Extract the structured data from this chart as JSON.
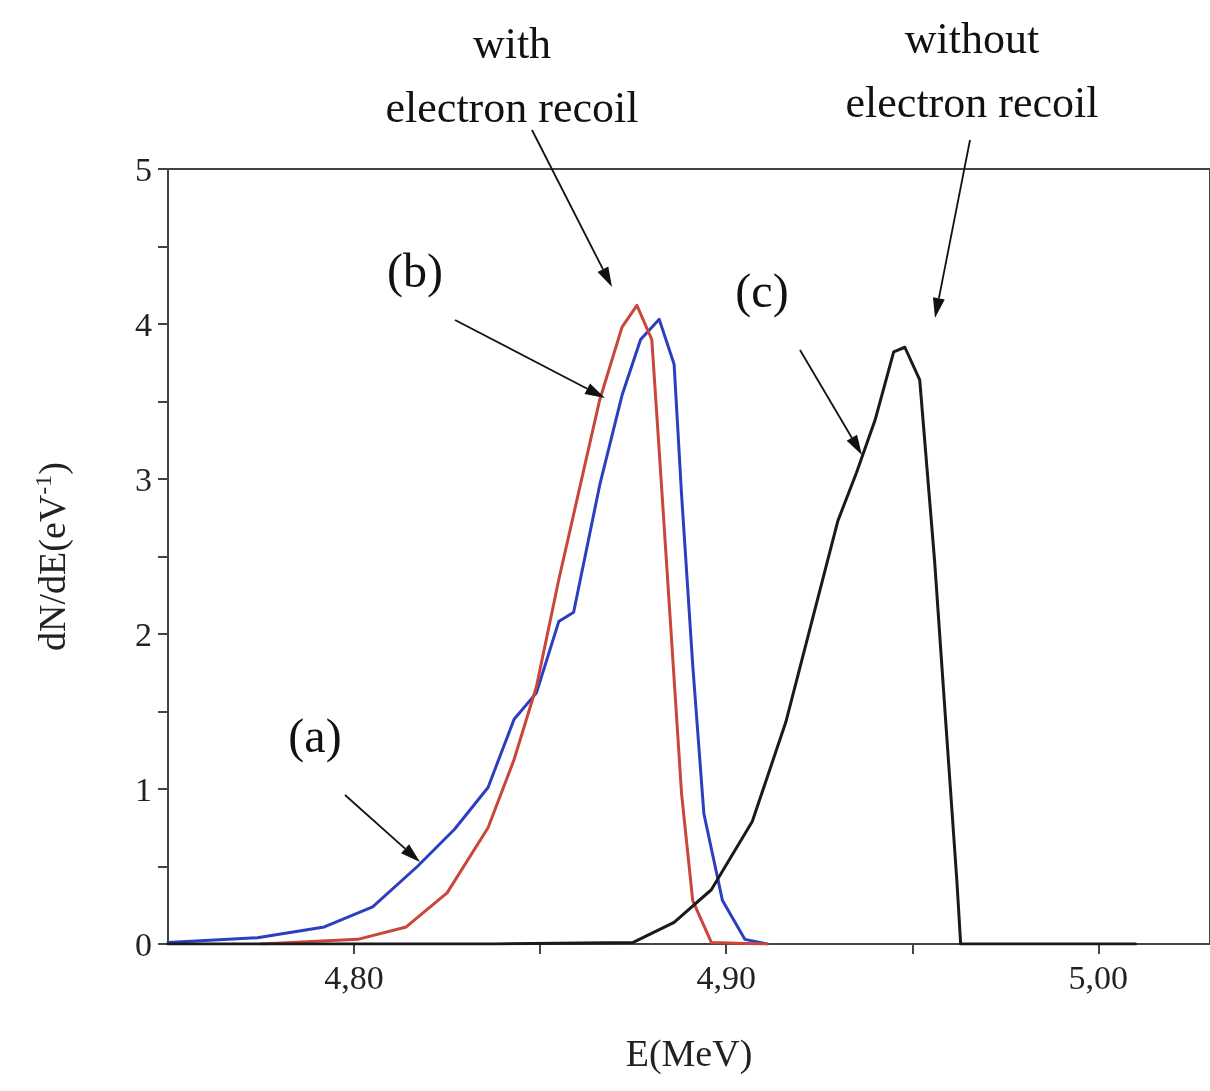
{
  "chart_data": {
    "type": "line",
    "xlabel": "E(MeV)",
    "ylabel": "dN/dE(eV$^{-1}$)",
    "xlim": [
      4.75,
      5.03
    ],
    "ylim": [
      0,
      5
    ],
    "xticks": [
      {
        "value": 4.8,
        "label": "4,80"
      },
      {
        "value": 4.85,
        "label": null
      },
      {
        "value": 4.9,
        "label": "4,90"
      },
      {
        "value": 4.95,
        "label": null
      },
      {
        "value": 5.0,
        "label": "5,00"
      }
    ],
    "yticks": [
      0,
      {
        "value": 0.5,
        "label": null
      },
      1,
      {
        "value": 1.5,
        "label": null
      },
      2,
      {
        "value": 2.5,
        "label": null
      },
      3,
      {
        "value": 3.5,
        "label": null
      },
      4,
      {
        "value": 4.5,
        "label": null
      },
      5
    ],
    "grid": false,
    "marker": "none",
    "line_style": "solid",
    "series": [
      {
        "color": "#2b3fbf",
        "x": [
          4.75,
          4.774,
          4.792,
          4.805,
          4.817,
          4.827,
          4.836,
          4.843,
          4.849,
          4.855,
          4.859,
          4.866,
          4.872,
          4.877,
          4.882,
          4.886,
          4.888,
          4.891,
          4.894,
          4.899,
          4.905,
          4.911
        ],
        "values": [
          0.01,
          0.04,
          0.11,
          0.24,
          0.5,
          0.74,
          1.01,
          1.45,
          1.62,
          2.08,
          2.14,
          2.96,
          3.54,
          3.9,
          4.03,
          3.74,
          2.9,
          1.8,
          0.84,
          0.28,
          0.03,
          0
        ]
      },
      {
        "color": "#c8463a",
        "x": [
          4.775,
          4.801,
          4.814,
          4.825,
          4.836,
          4.843,
          4.849,
          4.855,
          4.866,
          4.872,
          4.876,
          4.88,
          4.882,
          4.885,
          4.888,
          4.891,
          4.896,
          4.911
        ],
        "values": [
          0,
          0.03,
          0.11,
          0.33,
          0.75,
          1.19,
          1.66,
          2.35,
          3.51,
          3.98,
          4.12,
          3.9,
          3.18,
          2.08,
          0.97,
          0.28,
          0.01,
          0
        ]
      },
      {
        "color": "#1a1a1a",
        "x": [
          4.75,
          4.838,
          4.875,
          4.886,
          4.896,
          4.907,
          4.916,
          4.923,
          4.93,
          4.935,
          4.94,
          4.945,
          4.948,
          4.952,
          4.956,
          4.959,
          4.962,
          4.963,
          5.01
        ],
        "values": [
          0,
          0,
          0.01,
          0.14,
          0.35,
          0.79,
          1.43,
          2.08,
          2.73,
          3.04,
          3.38,
          3.82,
          3.85,
          3.64,
          2.47,
          1.43,
          0.4,
          0,
          0
        ]
      }
    ],
    "annotations": [
      "(a)",
      "(b)",
      "(c)",
      "with\nelectron recoil",
      "without\nelectron recoil"
    ]
  }
}
